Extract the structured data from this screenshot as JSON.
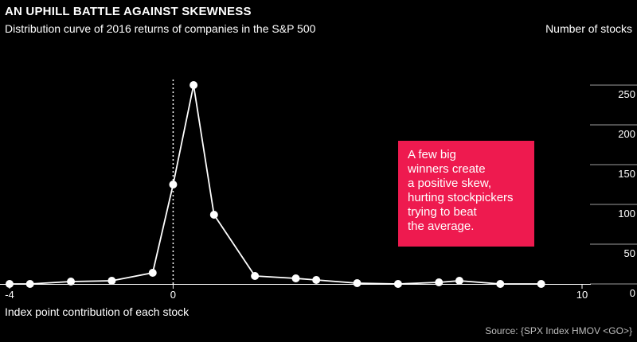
{
  "chart_data": {
    "type": "line",
    "title": "AN UPHILL BATTLE AGAINST SKEWNESS",
    "subtitle": "Distribution curve of 2016 returns of companies in the S&P 500",
    "ylabel": "Number of stocks",
    "xlabel": "Index point contribution of each stock",
    "source": "Source: {SPX Index HMOV <GO>}",
    "annotation": "A few big\nwinners create\na positive skew,\nhurting stockpickers\ntrying to beat\nthe average.",
    "xlim": [
      -4,
      10
    ],
    "ylim": [
      0,
      250
    ],
    "x_ticks": [
      -4,
      0,
      10
    ],
    "x_tick_labels": [
      "-4",
      "0",
      "10"
    ],
    "y_ticks": [
      0,
      50,
      100,
      150,
      200,
      250
    ],
    "y_tick_labels": [
      "0",
      "50",
      "100",
      "150",
      "200",
      "250"
    ],
    "reference_line_x": 0,
    "grid": false,
    "series": [
      {
        "x": [
          -4.0,
          -3.5,
          -2.5,
          -1.5,
          -0.5,
          0.0,
          0.5,
          1.0,
          2.0,
          3.0,
          3.5,
          4.5,
          5.5,
          6.5,
          7.0,
          8.0,
          9.0
        ],
        "y": [
          0,
          0,
          3,
          4,
          14,
          125,
          250,
          87,
          10,
          7,
          5,
          1,
          0,
          2,
          4,
          0,
          0
        ]
      }
    ],
    "colors": {
      "line": "#ffffff",
      "callout": "#ee1a4f",
      "background": "#000000"
    }
  }
}
